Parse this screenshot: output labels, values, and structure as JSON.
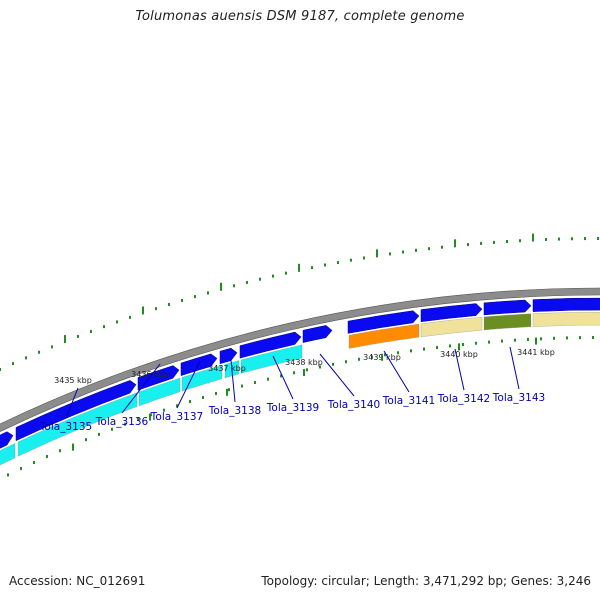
{
  "title": "Tolumonas auensis DSM 9187, complete genome",
  "footer": {
    "accession": "Accession: NC_012691",
    "topology": "Topology: circular; Length: 3,471,292 bp; Genes: 3,246"
  },
  "colors": {
    "backbone": "#8c8c8c",
    "forward_gene": "#0a0af0",
    "reverse_gene": "#18f0f0",
    "orange_gene": "#ff8c00",
    "khaki_gene": "#f0e29a",
    "olive_gene": "#6b8e23",
    "gc_plot": "#228b22",
    "label": "#0000b4"
  },
  "scale_labels": [
    "3435 kbp",
    "3436 kbp",
    "3437 kbp",
    "3438 kbp",
    "3439 kbp",
    "3440 kbp",
    "3441 kbp"
  ],
  "gene_labels": [
    "Tola_3135",
    "Tola_3136",
    "Tola_3137",
    "Tola_3138",
    "Tola_3139",
    "Tola_3140",
    "Tola_3141",
    "Tola_3142",
    "Tola_3143"
  ]
}
